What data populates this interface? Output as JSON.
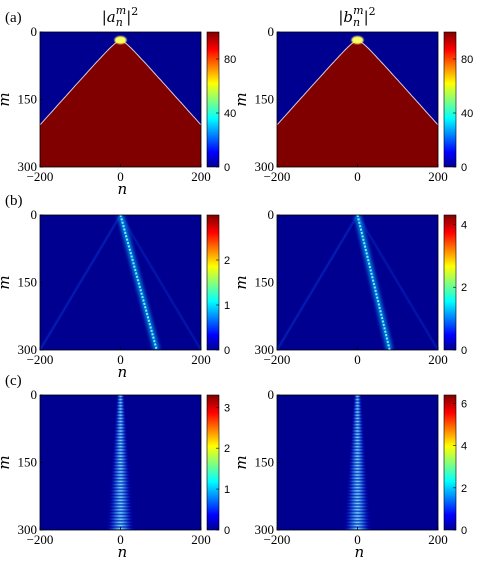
{
  "column_titles": {
    "left": {
      "base": "a",
      "sup": "m",
      "sub": "n",
      "power": "2"
    },
    "right": {
      "base": "b",
      "sup": "m",
      "sub": "n",
      "power": "2"
    }
  },
  "colors": {
    "low": "#000090",
    "mid": "#00ffff",
    "high": "#800000"
  },
  "chart_data": [
    {
      "panel": "(a)",
      "column": "left",
      "type": "heatmap",
      "pattern": "cone",
      "xlabel": "n",
      "ylabel": "m",
      "xlim": [
        -200,
        200
      ],
      "ylim": [
        0,
        300
      ],
      "xticks": [
        "−200",
        "0",
        "200"
      ],
      "yticks": [
        "0",
        "150",
        "300"
      ],
      "colorbar": {
        "max": 100,
        "ticks": [
          "80",
          "40",
          "0"
        ],
        "tick_values": [
          80,
          40,
          0
        ]
      }
    },
    {
      "panel": "",
      "column": "right",
      "type": "heatmap",
      "pattern": "cone",
      "xlabel": "",
      "ylabel": "m",
      "xlim": [
        -200,
        200
      ],
      "ylim": [
        0,
        300
      ],
      "xticks": [
        "−200",
        "0",
        "200"
      ],
      "yticks": [
        "0",
        "150",
        "300"
      ],
      "colorbar": {
        "max": 100,
        "ticks": [
          "80",
          "40",
          "0"
        ],
        "tick_values": [
          80,
          40,
          0
        ]
      }
    },
    {
      "panel": "(b)",
      "column": "left",
      "type": "heatmap",
      "pattern": "drift",
      "xlabel": "n",
      "ylabel": "m",
      "xlim": [
        -200,
        200
      ],
      "ylim": [
        0,
        300
      ],
      "xticks": [
        "−200",
        "0",
        "200"
      ],
      "yticks": [
        "0",
        "150",
        "300"
      ],
      "colorbar": {
        "max": 3,
        "ticks": [
          "2",
          "1",
          "0"
        ],
        "tick_values": [
          2,
          1,
          0
        ]
      }
    },
    {
      "panel": "",
      "column": "right",
      "type": "heatmap",
      "pattern": "drift",
      "xlabel": "",
      "ylabel": "m",
      "xlim": [
        -200,
        200
      ],
      "ylim": [
        0,
        300
      ],
      "xticks": [
        "−200",
        "0",
        "200"
      ],
      "yticks": [
        "0",
        "150",
        "300"
      ],
      "colorbar": {
        "max": 4.3,
        "ticks": [
          "4",
          "2",
          "0"
        ],
        "tick_values": [
          4,
          2,
          0
        ]
      }
    },
    {
      "panel": "(c)",
      "column": "left",
      "type": "heatmap",
      "pattern": "localized",
      "xlabel": "n",
      "ylabel": "m",
      "xlim": [
        -200,
        200
      ],
      "ylim": [
        0,
        300
      ],
      "xticks": [
        "−200",
        "0",
        "200"
      ],
      "yticks": [
        "0",
        "150",
        "300"
      ],
      "colorbar": {
        "max": 3.3,
        "ticks": [
          "3",
          "2",
          "1",
          "0"
        ],
        "tick_values": [
          3,
          2,
          1,
          0
        ]
      }
    },
    {
      "panel": "",
      "column": "right",
      "type": "heatmap",
      "pattern": "localized",
      "xlabel": "n",
      "ylabel": "m",
      "xlim": [
        -200,
        200
      ],
      "ylim": [
        0,
        300
      ],
      "xticks": [
        "−200",
        "0",
        "200"
      ],
      "yticks": [
        "0",
        "150",
        "300"
      ],
      "colorbar": {
        "max": 6.4,
        "ticks": [
          "6",
          "4",
          "2",
          "0"
        ],
        "tick_values": [
          6,
          4,
          2,
          0
        ]
      }
    }
  ]
}
